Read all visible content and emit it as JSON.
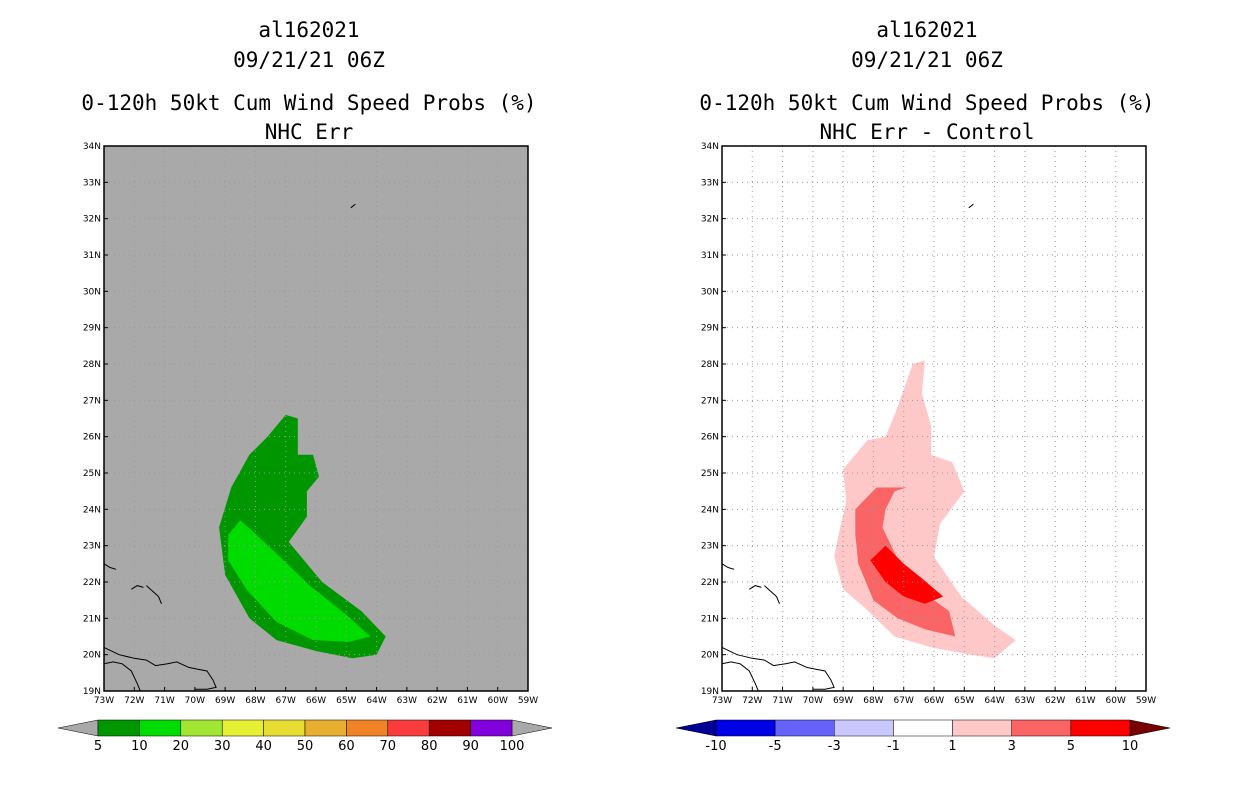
{
  "chart_data": [
    {
      "type": "contour_map",
      "title_lines": [
        "al162021",
        "09/21/21 06Z",
        "0-120h 50kt Cum Wind Speed Probs (%)",
        "NHC Err"
      ],
      "xlim": [
        -73,
        -59
      ],
      "ylim": [
        19,
        34
      ],
      "x_tick_labels": [
        "73W",
        "72W",
        "71W",
        "70W",
        "69W",
        "68W",
        "67W",
        "66W",
        "65W",
        "64W",
        "63W",
        "62W",
        "61W",
        "60W",
        "59W"
      ],
      "y_tick_labels": [
        "19N",
        "20N",
        "21N",
        "22N",
        "23N",
        "24N",
        "25N",
        "26N",
        "27N",
        "28N",
        "29N",
        "30N",
        "31N",
        "32N",
        "33N",
        "34N"
      ],
      "background_color": "#a9a9a9",
      "gridlines": true,
      "colorbar": {
        "labels": [
          "5",
          "10",
          "20",
          "30",
          "40",
          "50",
          "60",
          "70",
          "80",
          "90",
          "100"
        ],
        "colors": [
          "#009600",
          "#00dc00",
          "#a0e632",
          "#e6f032",
          "#e6dc32",
          "#e6af2d",
          "#f08228",
          "#fa3c3c",
          "#a00000",
          "#8200dc"
        ],
        "under_color": "#a9a9a9",
        "over_color": "#a9a9a9"
      },
      "contours": [
        {
          "level": "5-10",
          "color": "#009600",
          "points": [
            [
              -67.0,
              26.6
            ],
            [
              -67.6,
              26.0
            ],
            [
              -68.2,
              25.5
            ],
            [
              -68.8,
              24.6
            ],
            [
              -69.2,
              23.5
            ],
            [
              -69.0,
              22.2
            ],
            [
              -68.2,
              21.0
            ],
            [
              -67.3,
              20.4
            ],
            [
              -66.0,
              20.1
            ],
            [
              -64.8,
              19.9
            ],
            [
              -64.0,
              20.0
            ],
            [
              -63.7,
              20.5
            ],
            [
              -64.5,
              21.2
            ],
            [
              -65.8,
              22.0
            ],
            [
              -66.6,
              22.8
            ],
            [
              -66.9,
              23.1
            ],
            [
              -66.3,
              23.8
            ],
            [
              -66.3,
              24.5
            ],
            [
              -65.9,
              24.9
            ],
            [
              -66.1,
              25.5
            ],
            [
              -66.6,
              25.5
            ],
            [
              -66.6,
              26.5
            ]
          ]
        },
        {
          "level": "10-20",
          "color": "#00dc00",
          "points": [
            [
              -68.5,
              23.7
            ],
            [
              -68.1,
              23.4
            ],
            [
              -67.2,
              22.7
            ],
            [
              -66.2,
              21.9
            ],
            [
              -65.0,
              21.1
            ],
            [
              -64.2,
              20.5
            ],
            [
              -64.9,
              20.35
            ],
            [
              -66.1,
              20.4
            ],
            [
              -67.3,
              20.9
            ],
            [
              -68.3,
              21.8
            ],
            [
              -68.9,
              22.6
            ],
            [
              -68.9,
              23.3
            ]
          ]
        }
      ]
    },
    {
      "type": "contour_map",
      "title_lines": [
        "al162021",
        "09/21/21 06Z",
        "0-120h 50kt Cum Wind Speed Probs (%)",
        "NHC Err - Control"
      ],
      "xlim": [
        -73,
        -59
      ],
      "ylim": [
        19,
        34
      ],
      "x_tick_labels": [
        "73W",
        "72W",
        "71W",
        "70W",
        "69W",
        "68W",
        "67W",
        "66W",
        "65W",
        "64W",
        "63W",
        "62W",
        "61W",
        "60W",
        "59W"
      ],
      "y_tick_labels": [
        "19N",
        "20N",
        "21N",
        "22N",
        "23N",
        "24N",
        "25N",
        "26N",
        "27N",
        "28N",
        "29N",
        "30N",
        "31N",
        "32N",
        "33N",
        "34N"
      ],
      "background_color": "#ffffff",
      "gridlines": true,
      "colorbar": {
        "labels": [
          "-10",
          "-5",
          "-3",
          "-1",
          "1",
          "3",
          "5",
          "10"
        ],
        "colors": [
          "#0000e6",
          "#6464fa",
          "#c8c8ff",
          "#ffffff",
          "#ffc8c8",
          "#fa6464",
          "#ff0000"
        ],
        "under_color": "#000096",
        "over_color": "#780000"
      },
      "contours": [
        {
          "level": "1-3",
          "color": "#ffc8c8",
          "points": [
            [
              -66.7,
              28.0
            ],
            [
              -66.3,
              28.1
            ],
            [
              -66.4,
              27.2
            ],
            [
              -66.1,
              26.3
            ],
            [
              -66.1,
              25.5
            ],
            [
              -65.4,
              25.3
            ],
            [
              -65.0,
              24.5
            ],
            [
              -65.8,
              23.6
            ],
            [
              -66.0,
              22.7
            ],
            [
              -65.1,
              21.6
            ],
            [
              -64.0,
              20.8
            ],
            [
              -63.3,
              20.4
            ],
            [
              -64.0,
              19.9
            ],
            [
              -64.8,
              20.0
            ],
            [
              -66.1,
              20.2
            ],
            [
              -67.3,
              20.5
            ],
            [
              -68.3,
              21.3
            ],
            [
              -69.0,
              21.8
            ],
            [
              -69.3,
              22.7
            ],
            [
              -69.1,
              23.5
            ],
            [
              -68.9,
              24.2
            ],
            [
              -69.0,
              25.1
            ],
            [
              -68.2,
              25.9
            ],
            [
              -67.6,
              26.0
            ],
            [
              -67.3,
              26.6
            ]
          ]
        },
        {
          "level": "3-5",
          "color": "#fa6464",
          "points": [
            [
              -67.9,
              24.6
            ],
            [
              -68.6,
              24.0
            ],
            [
              -68.6,
              23.3
            ],
            [
              -68.5,
              22.5
            ],
            [
              -68.0,
              21.5
            ],
            [
              -67.2,
              21.0
            ],
            [
              -66.3,
              20.7
            ],
            [
              -65.3,
              20.5
            ],
            [
              -65.5,
              21.2
            ],
            [
              -66.0,
              21.5
            ],
            [
              -66.8,
              22.1
            ],
            [
              -67.3,
              22.8
            ],
            [
              -67.7,
              23.5
            ],
            [
              -67.6,
              24.0
            ],
            [
              -67.3,
              24.5
            ],
            [
              -66.9,
              24.6
            ]
          ]
        },
        {
          "level": "5-10",
          "color": "#ff0000",
          "points": [
            [
              -67.6,
              23.0
            ],
            [
              -68.1,
              22.6
            ],
            [
              -67.6,
              22.0
            ],
            [
              -67.0,
              21.6
            ],
            [
              -66.3,
              21.4
            ],
            [
              -65.7,
              21.6
            ],
            [
              -66.4,
              22.1
            ],
            [
              -67.0,
              22.5
            ]
          ]
        }
      ]
    }
  ]
}
